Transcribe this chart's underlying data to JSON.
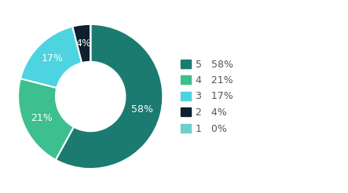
{
  "labels": [
    "5",
    "4",
    "3",
    "2",
    "1"
  ],
  "values": [
    58,
    21,
    17,
    4,
    0.0001
  ],
  "colors": [
    "#1b7b70",
    "#3dbf8f",
    "#4dd4e0",
    "#0d1f30",
    "#6ecfcf"
  ],
  "legend_labels": [
    "5   58%",
    "4   21%",
    "3   17%",
    "2   4%",
    "1   0%"
  ],
  "autopct_labels": [
    "58%",
    "21%",
    "17%",
    "4%",
    ""
  ],
  "text_color": "#ffffff",
  "background_color": "#ffffff",
  "wedge_edge_color": "#ffffff",
  "font_size": 9,
  "legend_font_size": 9,
  "legend_text_color": "#555555"
}
